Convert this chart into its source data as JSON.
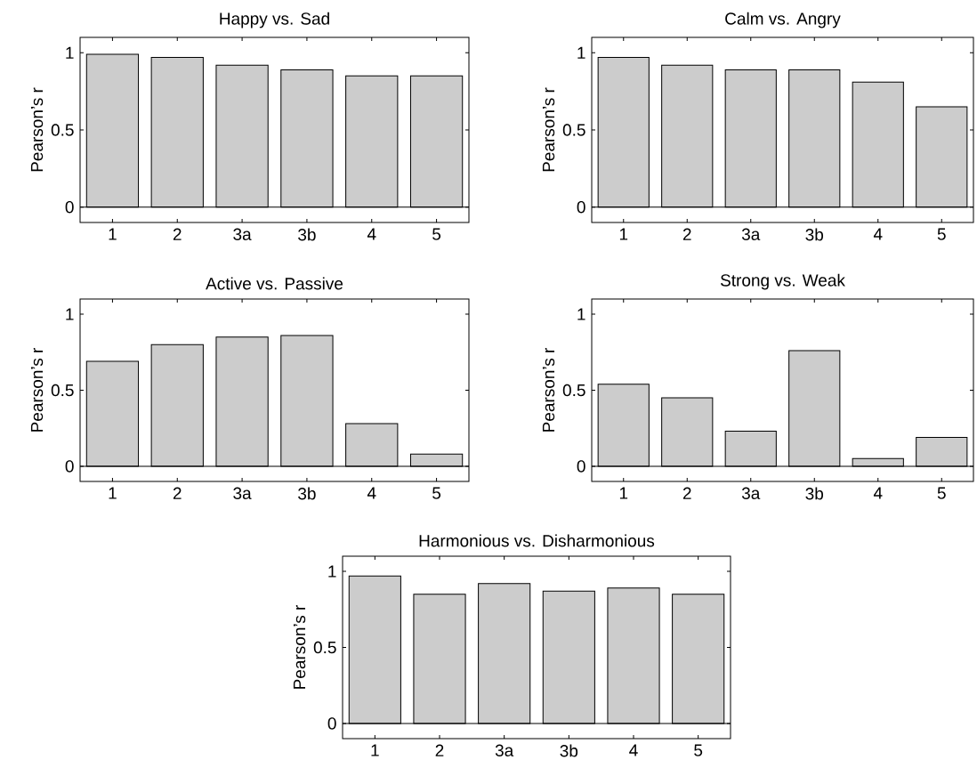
{
  "chart_data": [
    {
      "type": "bar",
      "title": "Happy vs. Sad",
      "ylabel": "Pearson’s r",
      "categories": [
        "1",
        "2",
        "3a",
        "3b",
        "4",
        "5"
      ],
      "values": [
        0.99,
        0.97,
        0.92,
        0.89,
        0.85,
        0.85
      ],
      "color": "#cccccc",
      "ylim": [
        -0.1,
        1.1
      ],
      "yticks": [
        0,
        0.5,
        1
      ]
    },
    {
      "type": "bar",
      "title": "Calm vs. Angry",
      "ylabel": "Pearson’s r",
      "categories": [
        "1",
        "2",
        "3a",
        "3b",
        "4",
        "5"
      ],
      "values": [
        0.97,
        0.92,
        0.89,
        0.89,
        0.81,
        0.65
      ],
      "color": "#cccccc",
      "ylim": [
        -0.1,
        1.1
      ],
      "yticks": [
        0,
        0.5,
        1
      ]
    },
    {
      "type": "bar",
      "title": "Active vs. Passive",
      "ylabel": "Pearson’s r",
      "categories": [
        "1",
        "2",
        "3a",
        "3b",
        "4",
        "5"
      ],
      "values": [
        0.69,
        0.8,
        0.85,
        0.86,
        0.28,
        0.08
      ],
      "color": "#cccccc",
      "ylim": [
        -0.1,
        1.1
      ],
      "yticks": [
        0,
        0.5,
        1
      ]
    },
    {
      "type": "bar",
      "title": "Strong vs. Weak",
      "ylabel": "Pearson’s r",
      "categories": [
        "1",
        "2",
        "3a",
        "3b",
        "4",
        "5"
      ],
      "values": [
        0.54,
        0.45,
        0.23,
        0.76,
        0.05,
        0.19
      ],
      "color": "#cccccc",
      "ylim": [
        -0.1,
        1.1
      ],
      "yticks": [
        0,
        0.5,
        1
      ]
    },
    {
      "type": "bar",
      "title": "Harmonious vs. Disharmonious",
      "ylabel": "Pearson’s r",
      "categories": [
        "1",
        "2",
        "3a",
        "3b",
        "4",
        "5"
      ],
      "values": [
        0.97,
        0.85,
        0.92,
        0.87,
        0.89,
        0.85
      ],
      "color": "#cccccc",
      "ylim": [
        -0.1,
        1.1
      ],
      "yticks": [
        0,
        0.5,
        1
      ]
    }
  ]
}
